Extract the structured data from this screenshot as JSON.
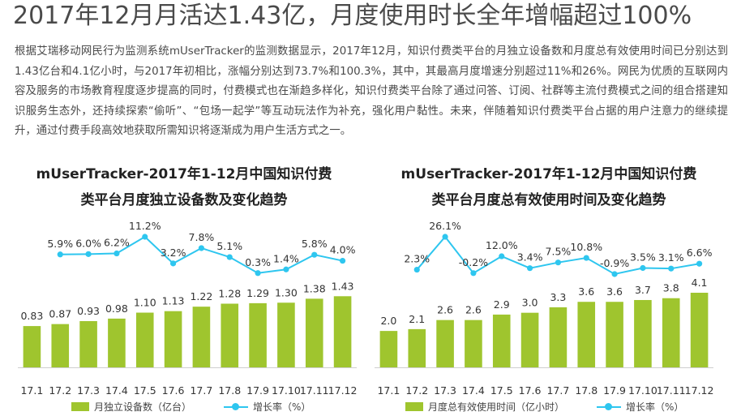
{
  "page": {
    "title": "2017年12月月活达1.43亿，月度使用时长全年增幅超过100%",
    "intro": "根据艾瑞移动网民行为监测系统mUserTracker的监测数据显示，2017年12月，知识付费类平台的月独立设备数和月度总有效使用时间已分别达到1.43亿台和4.1亿小时，与2017年初相比，涨幅分别达到73.7%和100.3%，其中，其最高月度增速分别超过11%和26%。网民为优质的互联网内容及服务的市场教育程度逐步提高的同时，付费模式也在渐趋多样化，知识付费类平台除了通过问答、订阅、社群等主流付费模式之间的组合搭建知识服务生态外，还持续探索“偷听”、“包场一起学”等互动玩法作为补充，强化用户黏性。未来，伴随着知识付费类平台占据的用户注意力的继续提升，通过付费手段高效地获取所需知识将逐渐成为用户生活方式之一。"
  },
  "chart_data": [
    {
      "type": "bar",
      "title_line1": "mUserTracker-2017年1-12月中国知识付费",
      "title_line2": "类平台月度独立设备数及变化趋势",
      "categories": [
        "17.1",
        "17.2",
        "17.3",
        "17.4",
        "17.5",
        "17.6",
        "17.7",
        "17.8",
        "17.9",
        "17.10",
        "17.11",
        "17.12"
      ],
      "series": [
        {
          "name": "月独立设备数（亿台）",
          "type": "bar",
          "color": "#9fc52e",
          "values": [
            0.83,
            0.87,
            0.93,
            0.98,
            1.1,
            1.13,
            1.22,
            1.28,
            1.29,
            1.3,
            1.38,
            1.43
          ],
          "labels": [
            "0.83",
            "0.87",
            "0.93",
            "0.98",
            "1.10",
            "1.13",
            "1.22",
            "1.28",
            "1.29",
            "1.30",
            "1.38",
            "1.43"
          ]
        },
        {
          "name": "增长率（%）",
          "type": "line",
          "color": "#2ec6ef",
          "values": [
            null,
            5.9,
            6.0,
            6.2,
            11.2,
            3.2,
            7.8,
            5.1,
            0.3,
            1.4,
            5.8,
            4.0
          ],
          "labels": [
            "",
            "5.9%",
            "6.0%",
            "6.2%",
            "11.2%",
            "3.2%",
            "7.8%",
            "5.1%",
            "0.3%",
            "1.4%",
            "5.8%",
            "4.0%"
          ]
        }
      ],
      "legend_position": "bottom"
    },
    {
      "type": "bar",
      "title_line1": "mUserTracker-2017年1-12月中国知识付费",
      "title_line2": "类平台月度总有效使用时间及变化趋势",
      "categories": [
        "17.1",
        "17.2",
        "17.3",
        "17.4",
        "17.5",
        "17.6",
        "17.7",
        "17.8",
        "17.9",
        "17.10",
        "17.11",
        "17.12"
      ],
      "series": [
        {
          "name": "月度总有效使用时间（亿小时）",
          "type": "bar",
          "color": "#9fc52e",
          "values": [
            2.0,
            2.1,
            2.6,
            2.6,
            2.9,
            3.0,
            3.3,
            3.6,
            3.6,
            3.7,
            3.8,
            4.1
          ],
          "labels": [
            "2.0",
            "2.1",
            "2.6",
            "2.6",
            "2.9",
            "3.0",
            "3.3",
            "3.6",
            "3.6",
            "3.7",
            "3.8",
            "4.1"
          ]
        },
        {
          "name": "增长率（%）",
          "type": "line",
          "color": "#2ec6ef",
          "values": [
            null,
            2.3,
            26.1,
            -0.2,
            12.0,
            3.4,
            7.5,
            10.8,
            -0.9,
            3.5,
            3.1,
            6.6
          ],
          "labels": [
            "",
            "2.3%",
            "26.1%",
            "-0.2%",
            "12.0%",
            "3.4%",
            "7.5%",
            "10.8%",
            "-0.9%",
            "3.5%",
            "3.1%",
            "6.6%"
          ]
        }
      ],
      "legend_position": "bottom"
    }
  ]
}
